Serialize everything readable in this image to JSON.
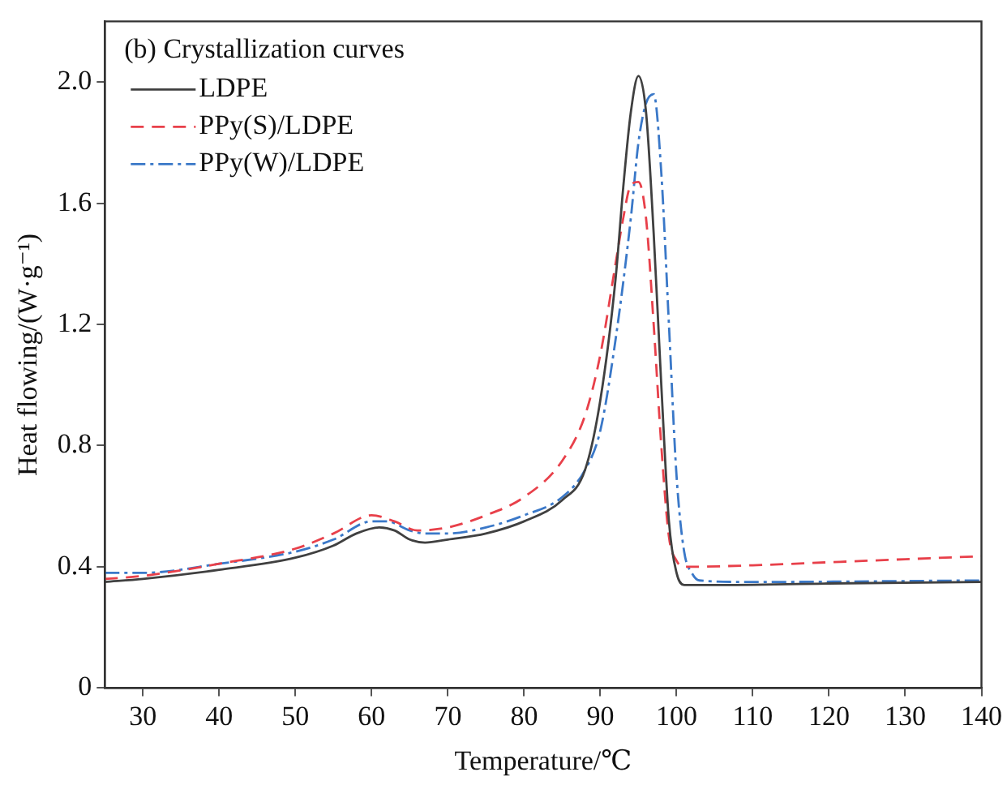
{
  "chart_data": {
    "type": "line",
    "title": "(b) Crystallization curves",
    "xlabel": "Temperature/℃",
    "ylabel": "Heat flowing/(W·g⁻¹)",
    "xlim": [
      25,
      140
    ],
    "xticks": [
      30,
      40,
      50,
      60,
      70,
      80,
      90,
      100,
      110,
      120,
      130,
      140
    ],
    "ylim": [
      0,
      2.2
    ],
    "yticks": [
      0,
      0.4,
      0.8,
      1.2,
      1.6,
      {
        "value": 2,
        "label": "2.0"
      }
    ],
    "grid": false,
    "legend": "top left",
    "marker": "none",
    "series": [
      {
        "name": "LDPE",
        "color": "#404040",
        "line_style": "solid",
        "x": [
          25,
          30,
          40,
          50,
          55,
          58,
          61,
          63,
          65,
          67,
          70,
          75,
          80,
          85,
          88,
          90,
          92,
          93,
          94,
          95,
          96,
          97,
          98,
          99,
          100,
          101,
          105,
          120,
          140
        ],
        "values": [
          0.35,
          0.36,
          0.39,
          0.43,
          0.47,
          0.51,
          0.53,
          0.52,
          0.49,
          0.48,
          0.49,
          0.51,
          0.55,
          0.62,
          0.72,
          0.95,
          1.35,
          1.65,
          1.9,
          2.02,
          1.9,
          1.5,
          1.0,
          0.55,
          0.38,
          0.34,
          0.34,
          0.345,
          0.35
        ]
      },
      {
        "name": "PPy(S)/LDPE",
        "color": "#e8404a",
        "line_style": "dashed",
        "x": [
          25,
          30,
          40,
          50,
          55,
          60,
          63,
          66,
          70,
          75,
          80,
          85,
          88,
          90,
          92,
          93,
          94,
          95,
          96,
          97,
          98,
          99,
          100,
          101,
          110,
          120,
          130,
          140
        ],
        "values": [
          0.36,
          0.37,
          0.41,
          0.46,
          0.51,
          0.57,
          0.55,
          0.52,
          0.53,
          0.57,
          0.63,
          0.75,
          0.9,
          1.1,
          1.4,
          1.55,
          1.66,
          1.67,
          1.55,
          1.2,
          0.8,
          0.5,
          0.42,
          0.4,
          0.405,
          0.415,
          0.425,
          0.435
        ]
      },
      {
        "name": "PPy(W)/LDPE",
        "color": "#3a78c8",
        "line_style": "dashdot",
        "x": [
          25,
          30,
          40,
          50,
          55,
          60,
          62,
          65,
          67,
          70,
          75,
          80,
          85,
          88,
          90,
          92,
          94,
          95,
          96,
          97,
          98,
          99,
          100,
          101,
          102,
          103,
          110,
          140
        ],
        "values": [
          0.38,
          0.38,
          0.41,
          0.45,
          0.49,
          0.55,
          0.55,
          0.52,
          0.51,
          0.51,
          0.53,
          0.57,
          0.63,
          0.72,
          0.85,
          1.15,
          1.55,
          1.8,
          1.93,
          1.96,
          1.7,
          1.2,
          0.7,
          0.45,
          0.38,
          0.355,
          0.35,
          0.355
        ]
      }
    ]
  }
}
